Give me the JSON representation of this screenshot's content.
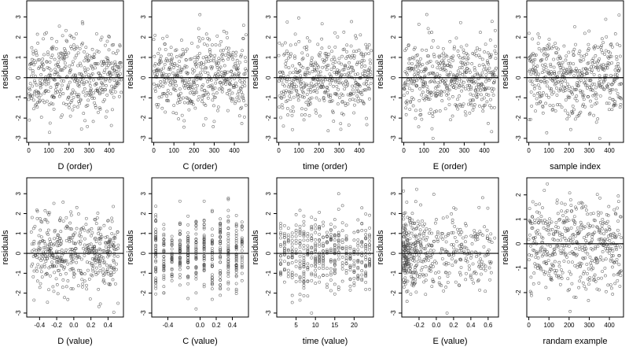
{
  "chart_data": [
    {
      "type": "scatter",
      "xlabel": "D (order)",
      "ylabel": "residuals",
      "xlim": [
        -10,
        470
      ],
      "ylim": [
        -3.2,
        3.8
      ],
      "xticks": [
        0,
        100,
        200,
        300,
        400
      ],
      "xtick_labels": [
        "0",
        "100",
        "200",
        "300",
        "400"
      ],
      "yticks": [
        -3,
        -2,
        -1,
        0,
        1,
        2,
        3
      ],
      "ytick_labels": [
        "-3",
        "-2",
        "-1",
        "0",
        "1",
        "2",
        "3"
      ],
      "reference_line_y": 0,
      "x_kind": "order",
      "n_points": 460,
      "seed": 11
    },
    {
      "type": "scatter",
      "xlabel": "C (order)",
      "ylabel": "residuals",
      "xlim": [
        -10,
        470
      ],
      "ylim": [
        -3.2,
        3.8
      ],
      "xticks": [
        0,
        100,
        200,
        300,
        400
      ],
      "xtick_labels": [
        "0",
        "100",
        "200",
        "300",
        "400"
      ],
      "yticks": [
        -3,
        -2,
        -1,
        0,
        1,
        2,
        3
      ],
      "ytick_labels": [
        "-3",
        "-2",
        "-1",
        "0",
        "1",
        "2",
        "3"
      ],
      "reference_line_y": 0,
      "x_kind": "order",
      "n_points": 460,
      "seed": 23
    },
    {
      "type": "scatter",
      "xlabel": "time (order)",
      "ylabel": "residuals",
      "xlim": [
        -10,
        470
      ],
      "ylim": [
        -3.2,
        3.8
      ],
      "xticks": [
        0,
        100,
        200,
        300,
        400
      ],
      "xtick_labels": [
        "0",
        "100",
        "200",
        "300",
        "400"
      ],
      "yticks": [
        -3,
        -2,
        -1,
        0,
        1,
        2,
        3
      ],
      "ytick_labels": [
        "-3",
        "-2",
        "-1",
        "0",
        "1",
        "2",
        "3"
      ],
      "reference_line_y": 0,
      "x_kind": "order",
      "n_points": 460,
      "seed": 37
    },
    {
      "type": "scatter",
      "xlabel": "E (order)",
      "ylabel": "residuals",
      "xlim": [
        -10,
        470
      ],
      "ylim": [
        -3.2,
        3.8
      ],
      "xticks": [
        0,
        100,
        200,
        300,
        400
      ],
      "xtick_labels": [
        "0",
        "100",
        "200",
        "300",
        "400"
      ],
      "yticks": [
        -3,
        -2,
        -1,
        0,
        1,
        2,
        3
      ],
      "ytick_labels": [
        "-3",
        "-2",
        "-1",
        "0",
        "1",
        "2",
        "3"
      ],
      "reference_line_y": 0,
      "x_kind": "order",
      "n_points": 460,
      "seed": 41
    },
    {
      "type": "scatter",
      "xlabel": "sample index",
      "ylabel": "residuals",
      "xlim": [
        -10,
        470
      ],
      "ylim": [
        -3.2,
        3.8
      ],
      "xticks": [
        0,
        100,
        200,
        300,
        400
      ],
      "xtick_labels": [
        "0",
        "100",
        "200",
        "300",
        "400"
      ],
      "yticks": [
        -3,
        -2,
        -1,
        0,
        1,
        2,
        3
      ],
      "ytick_labels": [
        "-3",
        "-2",
        "-1",
        "0",
        "1",
        "2",
        "3"
      ],
      "reference_line_y": 0,
      "x_kind": "order",
      "n_points": 460,
      "seed": 53
    },
    {
      "type": "scatter",
      "xlabel": "D (value)",
      "ylabel": "residuals",
      "xlim": [
        -0.55,
        0.58
      ],
      "ylim": [
        -3.2,
        3.8
      ],
      "xticks": [
        -0.4,
        -0.2,
        0,
        0.2,
        0.4
      ],
      "xtick_labels": [
        "-0.4",
        "-0.2",
        "0.0",
        "0.2",
        "0.4"
      ],
      "yticks": [
        -3,
        -2,
        -1,
        0,
        1,
        2,
        3
      ],
      "ytick_labels": [
        "-3",
        "-2",
        "-1",
        "0",
        "1",
        "2",
        "3"
      ],
      "reference_line_y": 0,
      "x_kind": "value",
      "x_range": [
        -0.5,
        0.52
      ],
      "n_points": 460,
      "seed": 61
    },
    {
      "type": "scatter",
      "xlabel": "C (value)",
      "ylabel": "residuals",
      "xlim": [
        -0.6,
        0.6
      ],
      "ylim": [
        -3.2,
        3.8
      ],
      "xticks": [
        -0.4,
        0,
        0.2,
        0.4
      ],
      "xtick_labels": [
        "-0.4",
        "0.0",
        "0.2",
        "0.4"
      ],
      "yticks": [
        -3,
        -2,
        -1,
        0,
        1,
        2,
        3
      ],
      "ytick_labels": [
        "-3",
        "-2",
        "-1",
        "0",
        "1",
        "2",
        "3"
      ],
      "reference_line_y": 0,
      "x_kind": "discrete",
      "x_levels": [
        -0.55,
        -0.45,
        -0.35,
        -0.25,
        -0.15,
        -0.05,
        0.05,
        0.15,
        0.25,
        0.35,
        0.45,
        0.52
      ],
      "n_points": 460,
      "seed": 71
    },
    {
      "type": "scatter",
      "xlabel": "time (value)",
      "ylabel": "residuals",
      "xlim": [
        0,
        25
      ],
      "ylim": [
        -3.2,
        3.8
      ],
      "xticks": [
        5,
        10,
        15,
        20
      ],
      "xtick_labels": [
        "5",
        "10",
        "15",
        "20"
      ],
      "yticks": [
        -3,
        -2,
        -1,
        0,
        1,
        2,
        3
      ],
      "ytick_labels": [
        "-3",
        "-2",
        "-1",
        "0",
        "1",
        "2",
        "3"
      ],
      "reference_line_y": 0,
      "x_kind": "discrete",
      "x_levels": [
        1,
        2,
        3,
        4,
        5,
        6,
        7,
        8,
        9,
        10,
        11,
        12,
        13,
        14,
        15,
        16,
        17,
        18,
        19,
        20,
        21,
        22,
        23,
        24
      ],
      "n_points": 460,
      "seed": 83
    },
    {
      "type": "scatter",
      "xlabel": "E (value)",
      "ylabel": "residuals",
      "xlim": [
        -0.4,
        0.72
      ],
      "ylim": [
        -3.2,
        3.8
      ],
      "xticks": [
        -0.2,
        0,
        0.2,
        0.4,
        0.6
      ],
      "xtick_labels": [
        "-0.2",
        "0.0",
        "0.2",
        "0.4",
        "0.6"
      ],
      "yticks": [
        -3,
        -2,
        -1,
        0,
        1,
        2,
        3
      ],
      "ytick_labels": [
        "-3",
        "-2",
        "-1",
        "0",
        "1",
        "2",
        "3"
      ],
      "reference_line_y": 0,
      "x_kind": "skewed",
      "x_range": [
        -0.38,
        0.68
      ],
      "n_points": 460,
      "seed": 97
    },
    {
      "type": "scatter",
      "xlabel": "randam example",
      "ylabel": "residuals",
      "xlim": [
        -10,
        470
      ],
      "ylim": [
        -3,
        2.7
      ],
      "xticks": [
        0,
        100,
        200,
        300,
        400
      ],
      "xtick_labels": [
        "0",
        "100",
        "200",
        "300",
        "400"
      ],
      "yticks": [
        -2,
        -1,
        0,
        1,
        2
      ],
      "ytick_labels": [
        "-2",
        "-1",
        "0",
        "1",
        "2"
      ],
      "reference_line_y": 0,
      "x_kind": "order",
      "n_points": 460,
      "seed": 101
    }
  ]
}
